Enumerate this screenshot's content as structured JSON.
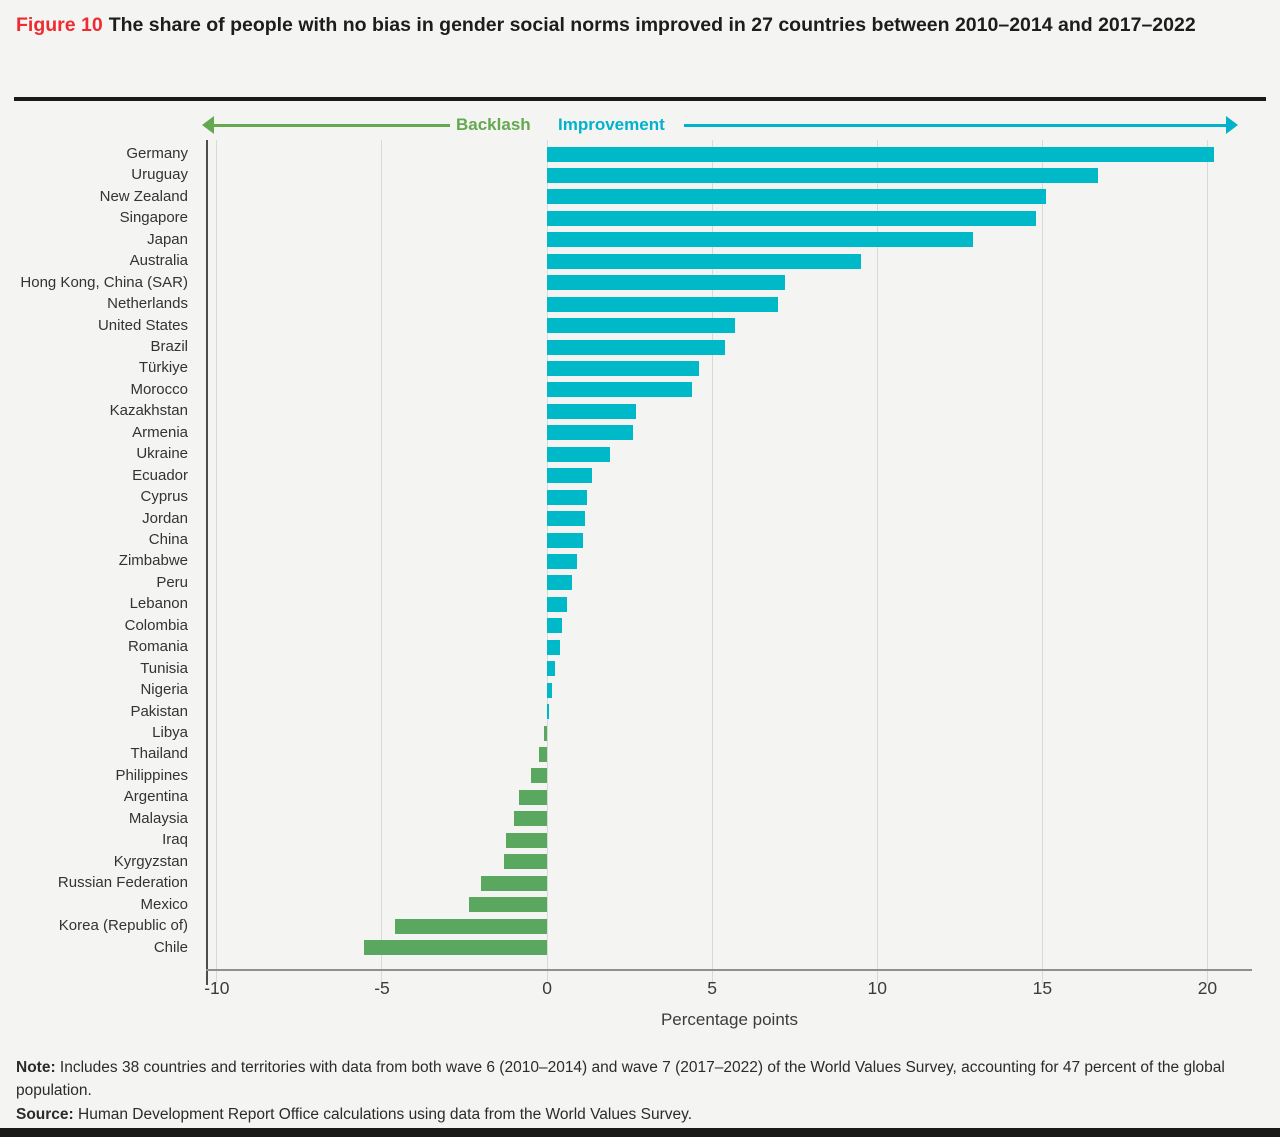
{
  "figure": {
    "label": "Figure 10",
    "title": "The share of people with no bias in gender social norms improved in 27 countries between 2010–2014 and 2017–2022"
  },
  "direction_labels": {
    "backlash": "Backlash",
    "improvement": "Improvement"
  },
  "colors": {
    "improvement_bar": "#00b9c8",
    "backlash_bar": "#5aa85f",
    "improvement_text": "#00b2cc",
    "backlash_text": "#64a950",
    "figure_label_red": "#ee2b31"
  },
  "chart_data": {
    "type": "bar",
    "orientation": "horizontal",
    "title": "The share of people with no bias in gender social norms improved in 27 countries between 2010–2014 and 2017–2022",
    "xlabel": "Percentage points",
    "xlim": [
      -10.3,
      21.35
    ],
    "xticks": [
      -10,
      -5,
      0,
      5,
      10,
      15,
      20
    ],
    "grid": "vertical",
    "legend": "none",
    "positive_meaning": "Improvement",
    "negative_meaning": "Backlash",
    "categories": [
      "Germany",
      "Uruguay",
      "New Zealand",
      "Singapore",
      "Japan",
      "Australia",
      "Hong Kong, China (SAR)",
      "Netherlands",
      "United States",
      "Brazil",
      "Türkiye",
      "Morocco",
      "Kazakhstan",
      "Armenia",
      "Ukraine",
      "Ecuador",
      "Cyprus",
      "Jordan",
      "China",
      "Zimbabwe",
      "Peru",
      "Lebanon",
      "Colombia",
      "Romania",
      "Tunisia",
      "Nigeria",
      "Pakistan",
      "Libya",
      "Thailand",
      "Philippines",
      "Argentina",
      "Malaysia",
      "Iraq",
      "Kyrgyzstan",
      "Russian Federation",
      "Mexico",
      "Korea (Republic of)",
      "Chile"
    ],
    "values": [
      20.2,
      16.7,
      15.1,
      14.8,
      12.9,
      9.5,
      7.2,
      7.0,
      5.7,
      5.4,
      4.6,
      4.4,
      2.7,
      2.6,
      1.9,
      1.35,
      1.2,
      1.15,
      1.1,
      0.9,
      0.75,
      0.6,
      0.45,
      0.4,
      0.25,
      0.15,
      0.05,
      -0.1,
      -0.25,
      -0.5,
      -0.85,
      -1.0,
      -1.25,
      -1.3,
      -2.0,
      -2.35,
      -4.6,
      -5.55
    ]
  },
  "footer": {
    "note_label": "Note:",
    "note_text": " Includes 38 countries and territories with data from both wave 6 (2010–2014) and wave 7 (2017–2022) of the World Values Survey, accounting for 47 percent of the global population.",
    "source_label": "Source:",
    "source_text": " Human Development Report Office calculations using data from the World Values Survey."
  }
}
